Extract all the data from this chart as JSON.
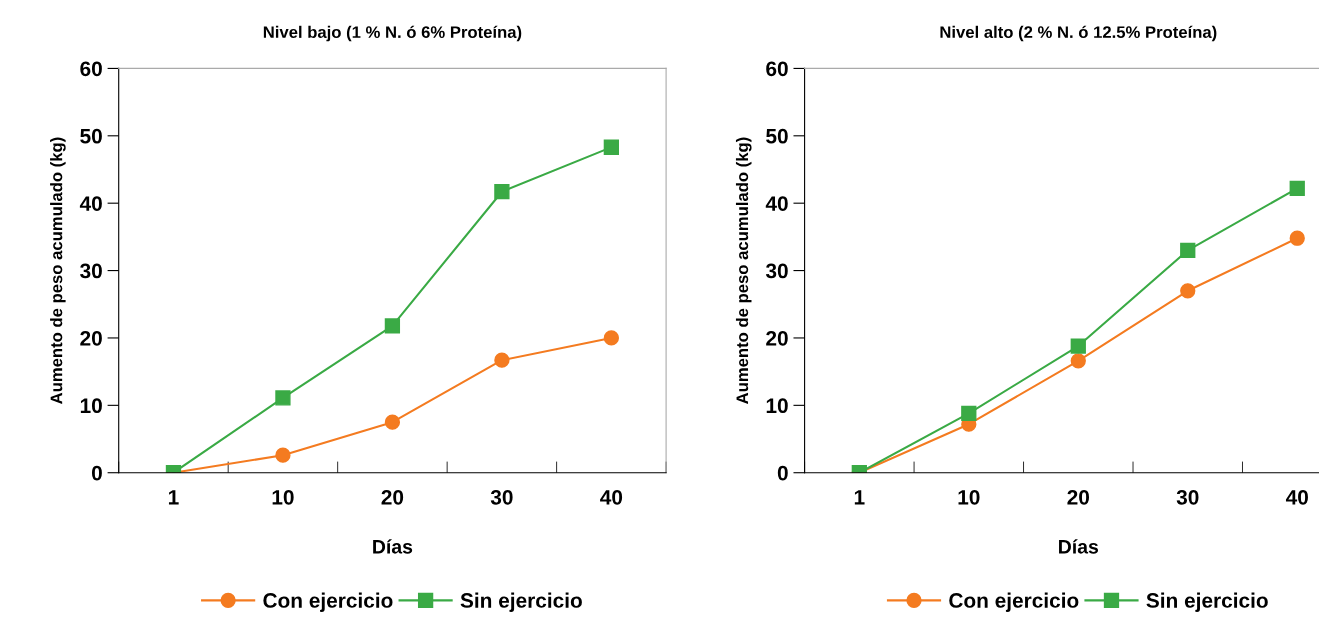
{
  "chart_data": [
    {
      "type": "line",
      "title": "Nivel bajo (1 % N. ó 6% Proteína)",
      "xlabel": "Días",
      "ylabel": "Aumento de peso acumulado (kg)",
      "categories": [
        "1",
        "10",
        "20",
        "30",
        "40"
      ],
      "ylim": [
        0,
        60
      ],
      "yticks": [
        0,
        10,
        20,
        30,
        40,
        50,
        60
      ],
      "grid": false,
      "legend": "bottom",
      "series": [
        {
          "name": "Con ejercicio",
          "color": "#f47b20",
          "marker": "circle",
          "values": [
            0,
            2.6,
            7.5,
            16.7,
            20.0
          ]
        },
        {
          "name": "Sin ejercicio",
          "color": "#3aaa45",
          "marker": "square",
          "values": [
            0,
            11.1,
            21.8,
            41.7,
            48.3
          ]
        }
      ]
    },
    {
      "type": "line",
      "title": "Nivel alto (2 % N. ó 12.5% Proteína)",
      "xlabel": "Días",
      "ylabel": "Aumento de peso acumulado (kg)",
      "categories": [
        "1",
        "10",
        "20",
        "30",
        "40"
      ],
      "ylim": [
        0,
        60
      ],
      "yticks": [
        0,
        10,
        20,
        30,
        40,
        50,
        60
      ],
      "grid": false,
      "legend": "bottom",
      "series": [
        {
          "name": "Con ejercicio",
          "color": "#f47b20",
          "marker": "circle",
          "values": [
            0,
            7.2,
            16.6,
            27.0,
            34.8
          ]
        },
        {
          "name": "Sin ejercicio",
          "color": "#3aaa45",
          "marker": "square",
          "values": [
            0,
            8.8,
            18.8,
            33.0,
            42.2
          ]
        }
      ]
    }
  ]
}
